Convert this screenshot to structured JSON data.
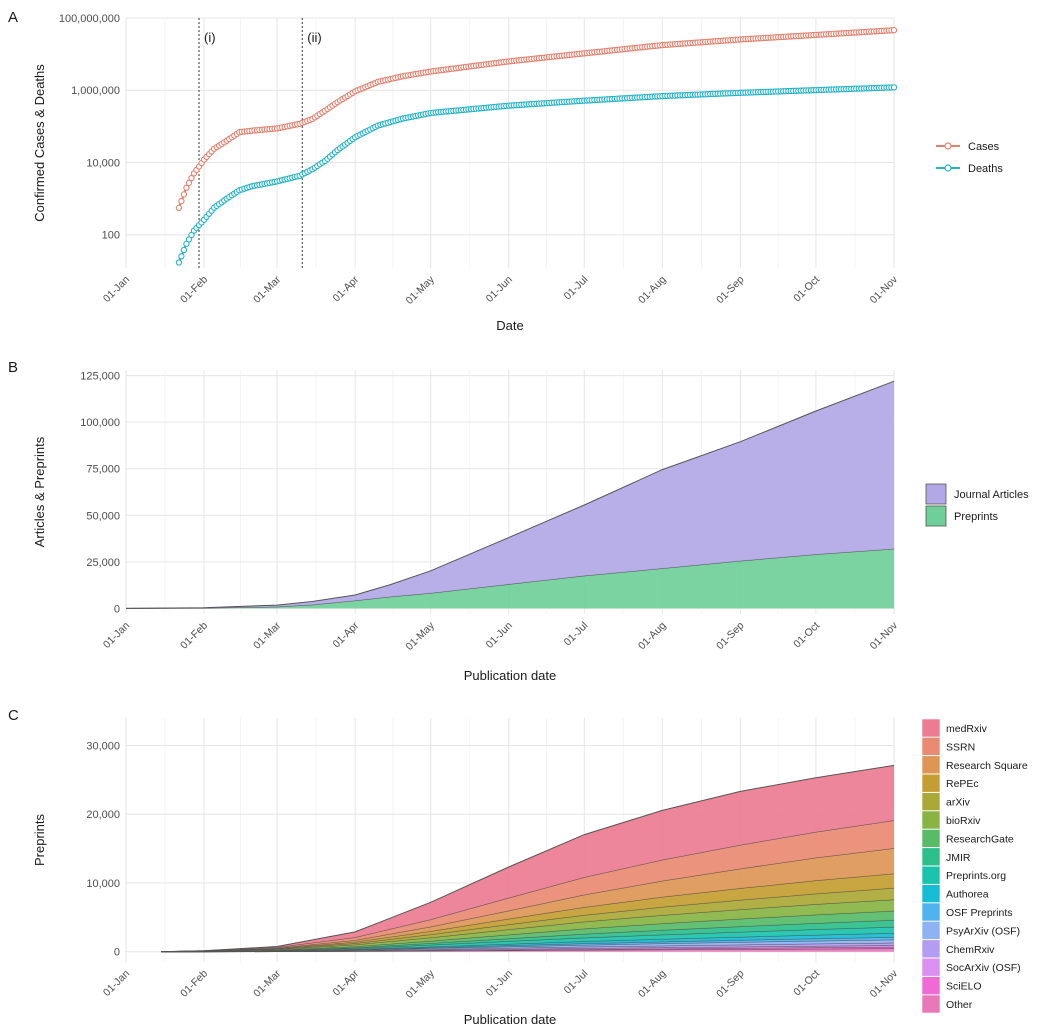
{
  "colors": {
    "cases": "#e2806e",
    "deaths": "#22b3c6",
    "journal": "#b3a8e6",
    "preprints_area": "#6fcf98",
    "panel_bg": "#ffffff",
    "grid": "#e6e6e6",
    "axis_text": "#4d4d4d"
  },
  "chart_data": [
    {
      "panel_label": "A",
      "type": "line",
      "x_tick_labels": [
        "01-Jan",
        "01-Feb",
        "01-Mar",
        "01-Apr",
        "01-May",
        "01-Jun",
        "01-Jul",
        "01-Aug",
        "01-Sep",
        "01-Oct",
        "01-Nov"
      ],
      "xlabel": "Date",
      "ylabel": "Confirmed Cases & Deaths",
      "y_scale": "log10",
      "ylim": [
        12,
        100000000
      ],
      "y_tick_values": [
        100,
        10000,
        1000000,
        100000000
      ],
      "y_tick_labels": [
        "100",
        "10,000",
        "1,000,000",
        "100,000,000"
      ],
      "grid": true,
      "legend_position": "right",
      "annotations": [
        {
          "label": "(i)",
          "x": "2020-01-30"
        },
        {
          "label": "(ii)",
          "x": "2020-03-11"
        }
      ],
      "series": [
        {
          "name": "Cases",
          "color_key": "cases",
          "x": [
            "2020-01-22",
            "2020-01-25",
            "2020-01-28",
            "2020-02-01",
            "2020-02-05",
            "2020-02-10",
            "2020-02-15",
            "2020-02-20",
            "2020-03-01",
            "2020-03-10",
            "2020-03-15",
            "2020-03-20",
            "2020-03-25",
            "2020-04-01",
            "2020-04-10",
            "2020-04-20",
            "2020-05-01",
            "2020-06-01",
            "2020-07-01",
            "2020-08-01",
            "2020-09-01",
            "2020-10-01",
            "2020-11-01"
          ],
          "values": [
            555,
            2000,
            5000,
            12000,
            24000,
            40000,
            69000,
            76000,
            88000,
            118000,
            160000,
            270000,
            470000,
            930000,
            1700000,
            2450000,
            3300000,
            6300000,
            10500000,
            17800000,
            25500000,
            34000000,
            46000000
          ]
        },
        {
          "name": "Deaths",
          "color_key": "deaths",
          "x": [
            "2020-01-22",
            "2020-01-25",
            "2020-01-28",
            "2020-02-01",
            "2020-02-05",
            "2020-02-10",
            "2020-02-15",
            "2020-02-20",
            "2020-03-01",
            "2020-03-10",
            "2020-03-15",
            "2020-03-20",
            "2020-03-25",
            "2020-04-01",
            "2020-04-10",
            "2020-04-20",
            "2020-05-01",
            "2020-06-01",
            "2020-07-01",
            "2020-08-01",
            "2020-09-01",
            "2020-10-01",
            "2020-11-01"
          ],
          "values": [
            17,
            56,
            130,
            260,
            560,
            1000,
            1700,
            2200,
            3000,
            4300,
            6500,
            11000,
            22000,
            50000,
            105000,
            165000,
            235000,
            375000,
            515000,
            690000,
            850000,
            1010000,
            1200000
          ]
        }
      ]
    },
    {
      "panel_label": "B",
      "type": "area",
      "stacked": true,
      "x_tick_labels": [
        "01-Jan",
        "01-Feb",
        "01-Mar",
        "01-Apr",
        "01-May",
        "01-Jun",
        "01-Jul",
        "01-Aug",
        "01-Sep",
        "01-Oct",
        "01-Nov"
      ],
      "xlabel": "Publication date",
      "ylabel": "Articles & Preprints",
      "ylim": [
        -3000,
        128000
      ],
      "y_tick_values": [
        0,
        25000,
        50000,
        75000,
        100000,
        125000
      ],
      "y_tick_labels": [
        "0",
        "25,000",
        "50,000",
        "75,000",
        "100,000",
        "125,000"
      ],
      "grid": true,
      "legend_position": "right",
      "x": [
        "2020-01-01",
        "2020-02-01",
        "2020-03-01",
        "2020-03-15",
        "2020-04-01",
        "2020-04-15",
        "2020-05-01",
        "2020-06-01",
        "2020-07-01",
        "2020-08-01",
        "2020-09-01",
        "2020-10-01",
        "2020-11-01"
      ],
      "series": [
        {
          "name": "Preprints",
          "color_key": "preprints_area",
          "values": [
            0,
            150,
            900,
            2000,
            4200,
            6300,
            8200,
            13000,
            17500,
            21500,
            25500,
            29000,
            32000
          ]
        },
        {
          "name": "Journal Articles",
          "color_key": "journal",
          "values": [
            0,
            250,
            900,
            1700,
            3000,
            6500,
            12000,
            25000,
            38000,
            53000,
            64000,
            77000,
            90000
          ]
        }
      ],
      "legend_order": [
        "Journal Articles",
        "Preprints"
      ]
    },
    {
      "panel_label": "C",
      "type": "area",
      "stacked": true,
      "x_tick_labels": [
        "01-Jan",
        "01-Feb",
        "01-Mar",
        "01-Apr",
        "01-May",
        "01-Jun",
        "01-Jul",
        "01-Aug",
        "01-Sep",
        "01-Oct",
        "01-Nov"
      ],
      "xlabel": "Publication date",
      "ylabel": "Preprints",
      "ylim": [
        -1500,
        34000
      ],
      "y_tick_values": [
        0,
        10000,
        20000,
        30000
      ],
      "y_tick_labels": [
        "0",
        "10,000",
        "20,000",
        "30,000"
      ],
      "grid": true,
      "legend_position": "right",
      "x": [
        "2020-01-15",
        "2020-02-01",
        "2020-03-01",
        "2020-04-01",
        "2020-05-01",
        "2020-06-01",
        "2020-07-01",
        "2020-08-01",
        "2020-09-01",
        "2020-10-01",
        "2020-11-01"
      ],
      "series": [
        {
          "name": "Other",
          "color": "#e878b8",
          "values": [
            0,
            5,
            25,
            60,
            110,
            170,
            240,
            300,
            360,
            410,
            460
          ]
        },
        {
          "name": "SciELO",
          "color": "#f06ad6",
          "values": [
            0,
            0,
            5,
            20,
            45,
            80,
            110,
            140,
            170,
            200,
            230
          ]
        },
        {
          "name": "SocArXiv (OSF)",
          "color": "#d990f0",
          "values": [
            0,
            5,
            20,
            50,
            85,
            120,
            150,
            175,
            200,
            220,
            240
          ]
        },
        {
          "name": "ChemRxiv",
          "color": "#b59cf3",
          "values": [
            0,
            5,
            25,
            60,
            110,
            160,
            210,
            250,
            290,
            330,
            360
          ]
        },
        {
          "name": "PsyArXiv (OSF)",
          "color": "#8fb2f5",
          "values": [
            0,
            5,
            25,
            70,
            140,
            210,
            270,
            320,
            370,
            410,
            450
          ]
        },
        {
          "name": "OSF Preprints",
          "color": "#4eb3ee",
          "values": [
            0,
            5,
            25,
            60,
            110,
            160,
            210,
            250,
            290,
            330,
            370
          ]
        },
        {
          "name": "Authorea",
          "color": "#16bcd4",
          "values": [
            0,
            5,
            20,
            60,
            130,
            220,
            310,
            390,
            460,
            530,
            600
          ]
        },
        {
          "name": "Preprints.org",
          "color": "#1ac3ac",
          "values": [
            0,
            10,
            40,
            120,
            260,
            400,
            530,
            640,
            730,
            810,
            880
          ]
        },
        {
          "name": "JMIR",
          "color": "#2cbf8c",
          "values": [
            0,
            5,
            30,
            100,
            230,
            390,
            540,
            680,
            800,
            910,
            1000
          ]
        },
        {
          "name": "ResearchGate",
          "color": "#57bb68",
          "values": [
            0,
            10,
            50,
            150,
            330,
            560,
            780,
            960,
            1100,
            1230,
            1340
          ]
        },
        {
          "name": "bioRxiv",
          "color": "#89b443",
          "values": [
            0,
            20,
            100,
            260,
            500,
            760,
            1000,
            1200,
            1370,
            1520,
            1650
          ]
        },
        {
          "name": "arXiv",
          "color": "#aaa836",
          "values": [
            0,
            10,
            60,
            200,
            450,
            720,
            980,
            1200,
            1380,
            1540,
            1680
          ]
        },
        {
          "name": "RePEc",
          "color": "#c59e33",
          "values": [
            0,
            10,
            50,
            200,
            480,
            820,
            1150,
            1450,
            1700,
            1920,
            2100
          ]
        },
        {
          "name": "Research Square",
          "color": "#de9655",
          "values": [
            0,
            10,
            60,
            250,
            650,
            1200,
            1800,
            2350,
            2850,
            3300,
            3700
          ]
        },
        {
          "name": "SSRN",
          "color": "#ea8a72",
          "values": [
            0,
            20,
            100,
            420,
            1050,
            1850,
            2550,
            3050,
            3450,
            3760,
            4040
          ]
        },
        {
          "name": "medRxiv",
          "color": "#ec7c91",
          "values": [
            0,
            20,
            120,
            800,
            2500,
            4500,
            6200,
            7200,
            7800,
            7900,
            8000
          ]
        }
      ],
      "legend_order": [
        "medRxiv",
        "SSRN",
        "Research Square",
        "RePEc",
        "arXiv",
        "bioRxiv",
        "ResearchGate",
        "JMIR",
        "Preprints.org",
        "Authorea",
        "OSF Preprints",
        "PsyArXiv (OSF)",
        "ChemRxiv",
        "SocArXiv (OSF)",
        "SciELO",
        "Other"
      ]
    }
  ]
}
